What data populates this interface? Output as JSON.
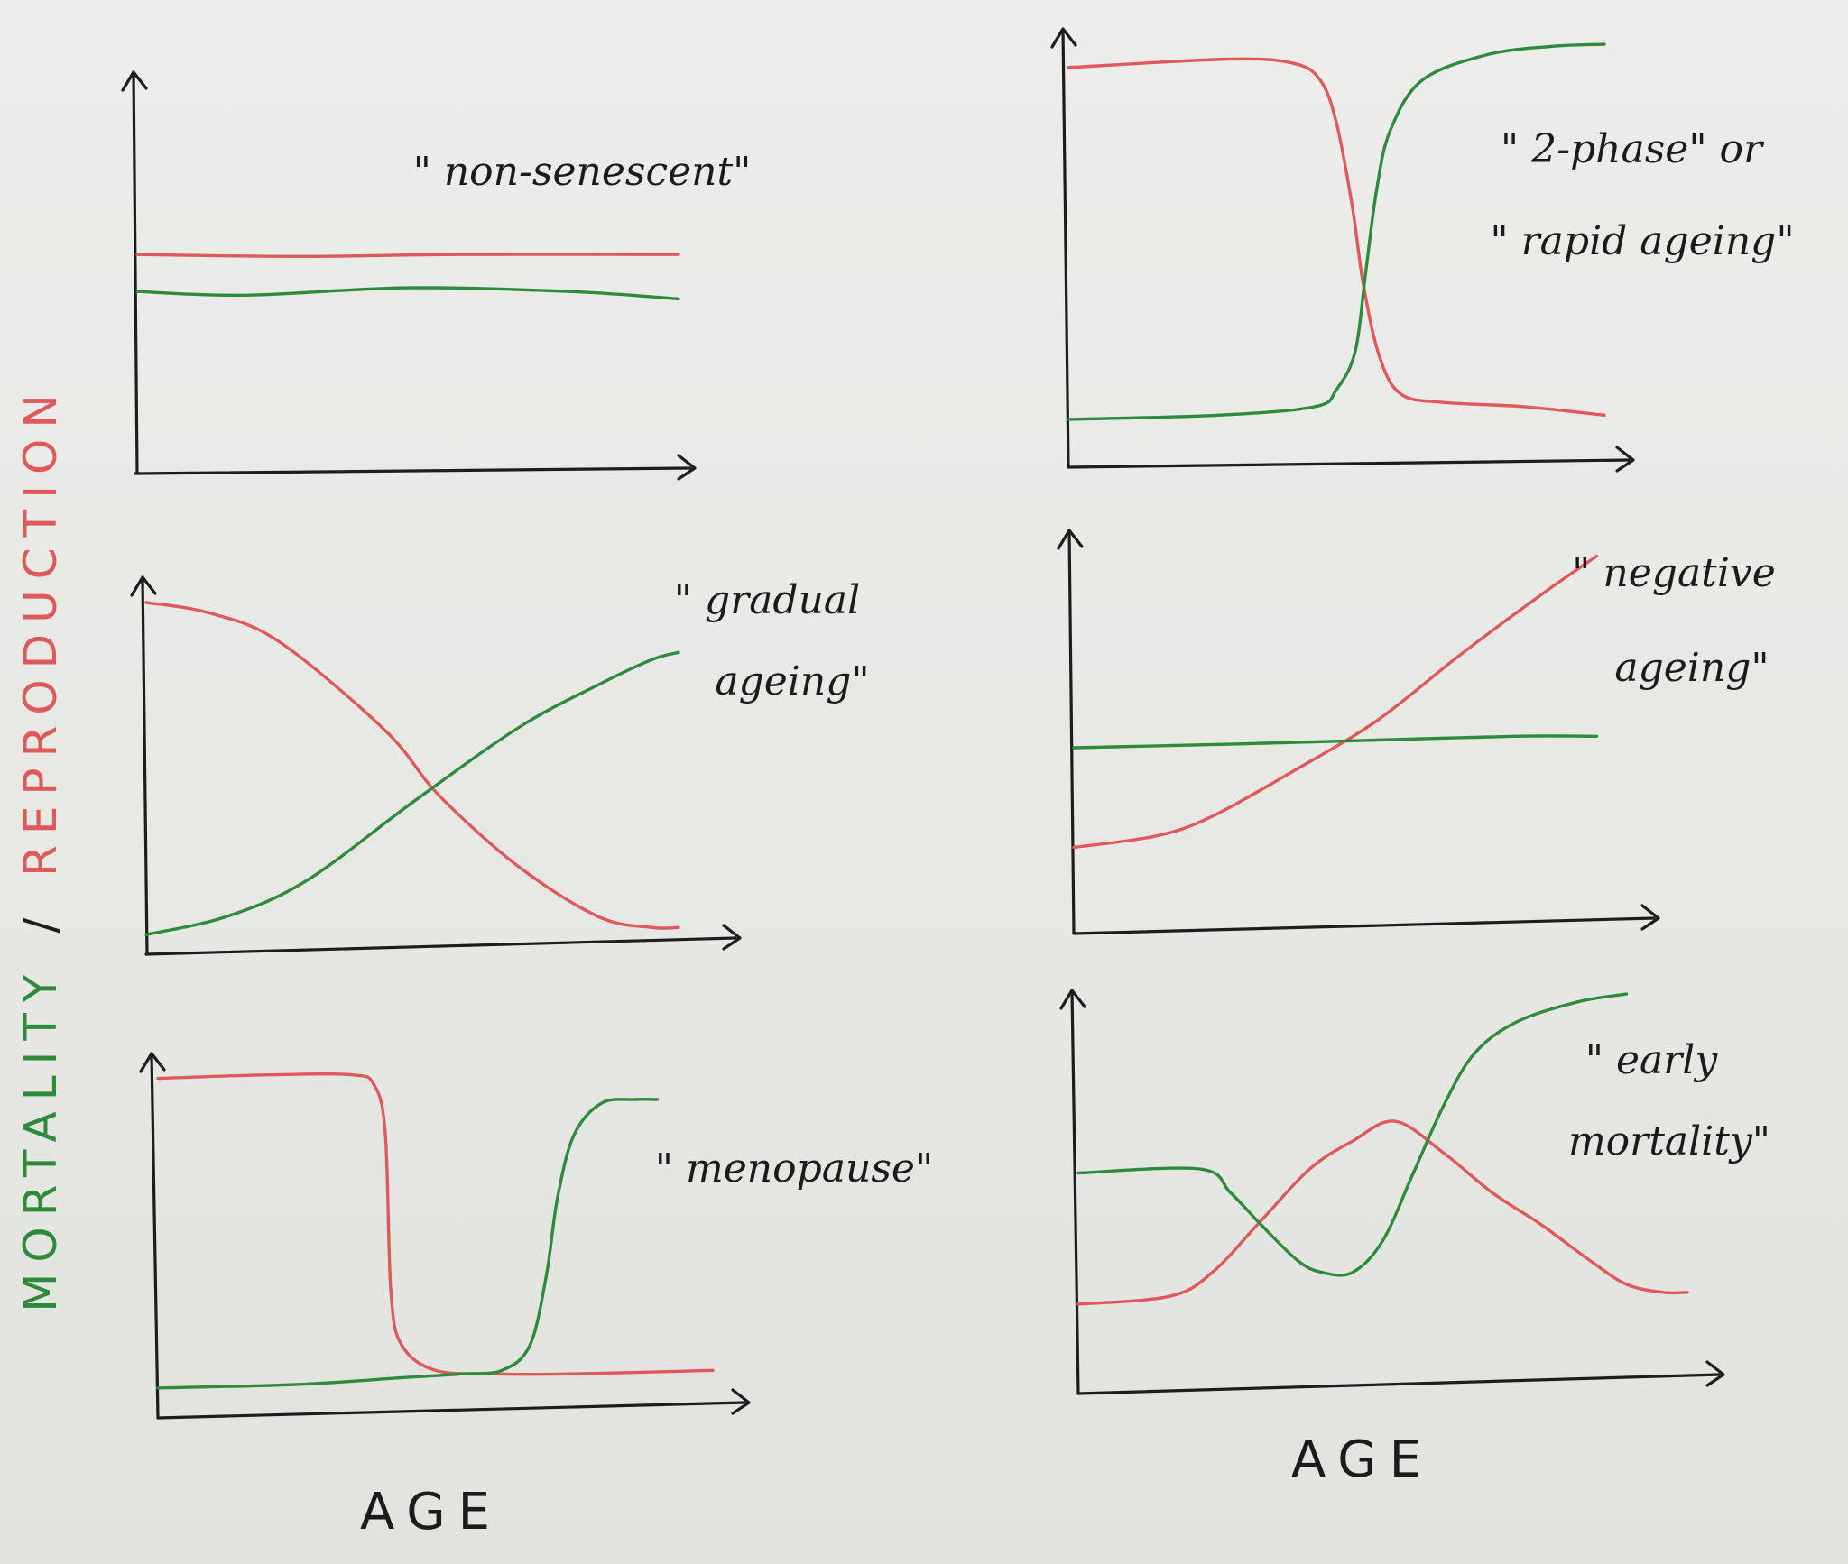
{
  "colors": {
    "mortality": "#2e8b3c",
    "reproduction": "#de5a5a",
    "ink": "#1d1d1d"
  },
  "y_label": {
    "mortality": "MORTALITY",
    "separator": "/",
    "reproduction": "REPRODUCTION"
  },
  "x_labels": {
    "left": "AGE",
    "right": "AGE"
  },
  "panels": [
    {
      "id": "non-senescent",
      "label_lines": [
        "\" non-senescent\""
      ],
      "mortality": [
        [
          0,
          0.48
        ],
        [
          0.2,
          0.47
        ],
        [
          0.5,
          0.49
        ],
        [
          0.8,
          0.48
        ],
        [
          1,
          0.46
        ]
      ],
      "reproduction": [
        [
          0,
          0.58
        ],
        [
          0.3,
          0.575
        ],
        [
          0.6,
          0.58
        ],
        [
          1,
          0.58
        ]
      ]
    },
    {
      "id": "two-phase",
      "label_lines": [
        "\" 2-phase\" or",
        "\" rapid ageing\""
      ],
      "mortality": [
        [
          0,
          0.1
        ],
        [
          0.28,
          0.11
        ],
        [
          0.46,
          0.13
        ],
        [
          0.5,
          0.17
        ],
        [
          0.535,
          0.26
        ],
        [
          0.555,
          0.45
        ],
        [
          0.575,
          0.64
        ],
        [
          0.6,
          0.78
        ],
        [
          0.66,
          0.9
        ],
        [
          0.78,
          0.96
        ],
        [
          0.9,
          0.98
        ],
        [
          1,
          0.985
        ]
      ],
      "reproduction": [
        [
          0,
          0.93
        ],
        [
          0.3,
          0.95
        ],
        [
          0.42,
          0.94
        ],
        [
          0.47,
          0.9
        ],
        [
          0.5,
          0.8
        ],
        [
          0.53,
          0.6
        ],
        [
          0.55,
          0.42
        ],
        [
          0.58,
          0.25
        ],
        [
          0.62,
          0.16
        ],
        [
          0.7,
          0.14
        ],
        [
          0.85,
          0.13
        ],
        [
          1,
          0.11
        ]
      ]
    },
    {
      "id": "gradual-ageing",
      "label_lines": [
        "\" gradual",
        "ageing\""
      ],
      "mortality": [
        [
          0,
          0.05
        ],
        [
          0.15,
          0.1
        ],
        [
          0.3,
          0.2
        ],
        [
          0.5,
          0.42
        ],
        [
          0.7,
          0.63
        ],
        [
          0.85,
          0.75
        ],
        [
          0.95,
          0.82
        ],
        [
          1,
          0.84
        ]
      ],
      "reproduction": [
        [
          0,
          0.98
        ],
        [
          0.12,
          0.95
        ],
        [
          0.25,
          0.87
        ],
        [
          0.45,
          0.62
        ],
        [
          0.55,
          0.44
        ],
        [
          0.7,
          0.24
        ],
        [
          0.85,
          0.1
        ],
        [
          0.95,
          0.07
        ],
        [
          1,
          0.07
        ]
      ]
    },
    {
      "id": "negative-ageing",
      "label_lines": [
        "\" negative",
        "ageing\""
      ],
      "mortality": [
        [
          0,
          0.48
        ],
        [
          0.3,
          0.49
        ],
        [
          0.55,
          0.5
        ],
        [
          0.8,
          0.51
        ],
        [
          0.95,
          0.51
        ]
      ],
      "reproduction": [
        [
          0,
          0.22
        ],
        [
          0.15,
          0.25
        ],
        [
          0.25,
          0.3
        ],
        [
          0.4,
          0.42
        ],
        [
          0.55,
          0.55
        ],
        [
          0.7,
          0.72
        ],
        [
          0.85,
          0.88
        ],
        [
          0.95,
          0.98
        ]
      ]
    },
    {
      "id": "menopause",
      "label_lines": [
        "\" menopause\""
      ],
      "mortality": [
        [
          0,
          0.08
        ],
        [
          0.25,
          0.09
        ],
        [
          0.45,
          0.11
        ],
        [
          0.55,
          0.12
        ],
        [
          0.62,
          0.13
        ],
        [
          0.67,
          0.2
        ],
        [
          0.7,
          0.4
        ],
        [
          0.72,
          0.62
        ],
        [
          0.75,
          0.8
        ],
        [
          0.8,
          0.89
        ],
        [
          0.86,
          0.9
        ],
        [
          0.9,
          0.9
        ]
      ],
      "reproduction": [
        [
          0,
          0.96
        ],
        [
          0.2,
          0.97
        ],
        [
          0.35,
          0.97
        ],
        [
          0.39,
          0.94
        ],
        [
          0.41,
          0.8
        ],
        [
          0.42,
          0.35
        ],
        [
          0.44,
          0.2
        ],
        [
          0.5,
          0.13
        ],
        [
          0.6,
          0.12
        ],
        [
          0.75,
          0.12
        ],
        [
          1,
          0.13
        ]
      ]
    },
    {
      "id": "early-mortality",
      "label_lines": [
        "\" early",
        "mortality\""
      ],
      "mortality": [
        [
          0,
          0.55
        ],
        [
          0.2,
          0.56
        ],
        [
          0.25,
          0.5
        ],
        [
          0.3,
          0.42
        ],
        [
          0.36,
          0.33
        ],
        [
          0.4,
          0.3
        ],
        [
          0.45,
          0.3
        ],
        [
          0.5,
          0.38
        ],
        [
          0.55,
          0.55
        ],
        [
          0.6,
          0.72
        ],
        [
          0.65,
          0.85
        ],
        [
          0.72,
          0.93
        ],
        [
          0.82,
          0.98
        ],
        [
          0.9,
          1.0
        ]
      ],
      "reproduction": [
        [
          0,
          0.22
        ],
        [
          0.15,
          0.24
        ],
        [
          0.22,
          0.3
        ],
        [
          0.3,
          0.43
        ],
        [
          0.38,
          0.56
        ],
        [
          0.45,
          0.63
        ],
        [
          0.52,
          0.68
        ],
        [
          0.6,
          0.6
        ],
        [
          0.68,
          0.5
        ],
        [
          0.76,
          0.42
        ],
        [
          0.84,
          0.33
        ],
        [
          0.9,
          0.27
        ],
        [
          0.96,
          0.25
        ],
        [
          1,
          0.25
        ]
      ]
    }
  ]
}
